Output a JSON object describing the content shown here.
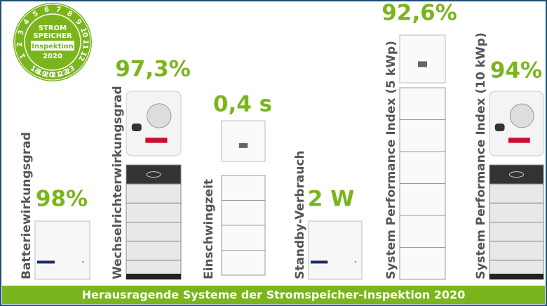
{
  "badge": {
    "line1": "STROM",
    "line2": "SPEICHER",
    "line3": "Inspektion",
    "line4": "2020",
    "ring_top": [
      "1",
      "2",
      "3",
      "4",
      "5",
      "6",
      "7",
      "8",
      "9",
      "10",
      "11",
      "12"
    ],
    "ring_bottom": [
      "18",
      "19",
      "20",
      "21",
      "22",
      "23"
    ]
  },
  "columns": [
    {
      "label": "Batteriewirkungsgrad",
      "value": "98%"
    },
    {
      "label": "Wechselrichterwirkungsgrad",
      "value": "97,3%"
    },
    {
      "label": "Einschwingzeit",
      "value": "0,4 s"
    },
    {
      "label": "Standby-Verbrauch",
      "value": "2 W"
    },
    {
      "label": "System Performance Index (5 kWp)",
      "value": "92,6%"
    },
    {
      "label": "System Performance Index (10 kWp)",
      "value": "94%"
    }
  ],
  "footer": "Herausragende Systeme der Stromspeicher-Inspektion 2020"
}
